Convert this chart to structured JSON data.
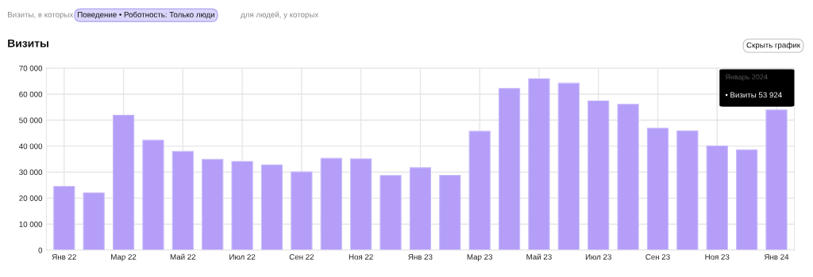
{
  "chart_data": {
    "type": "bar",
    "title": "Визиты",
    "categories": [
      "Янв 22",
      null,
      "Мар 22",
      null,
      "Май 22",
      null,
      "Июл 22",
      null,
      "Сен 22",
      null,
      "Ноя 22",
      null,
      "Янв 23",
      null,
      "Мар 23",
      null,
      "Май 23",
      null,
      "Июл 23",
      null,
      "Сен 23",
      null,
      "Ноя 23",
      null,
      "Янв 24"
    ],
    "values": [
      24500,
      22000,
      51900,
      42300,
      38000,
      34900,
      34100,
      32800,
      30100,
      35300,
      35100,
      28700,
      31700,
      28800,
      45700,
      62200,
      65900,
      64200,
      57400,
      56100,
      46900,
      45900,
      40100,
      38600,
      53924
    ],
    "color": "#b49ef8",
    "ylim": [
      0,
      70000
    ],
    "yticks": [
      0,
      {
        "value": 10000,
        "label": "10 000"
      },
      {
        "value": 20000,
        "label": "20 000"
      },
      {
        "value": 30000,
        "label": "30 000"
      },
      {
        "value": 40000,
        "label": "40 000"
      },
      {
        "value": 50000,
        "label": "50 000"
      },
      {
        "value": 60000,
        "label": "60 000"
      },
      {
        "value": 70000,
        "label": "70 000"
      }
    ],
    "grid": true,
    "annotations": [
      "Визиты, в которых",
      "Поведение • Роботность: Только люди",
      "для людей, у которых",
      "Скрыть график",
      "Январь 2024",
      "• Визиты 53 924"
    ]
  }
}
